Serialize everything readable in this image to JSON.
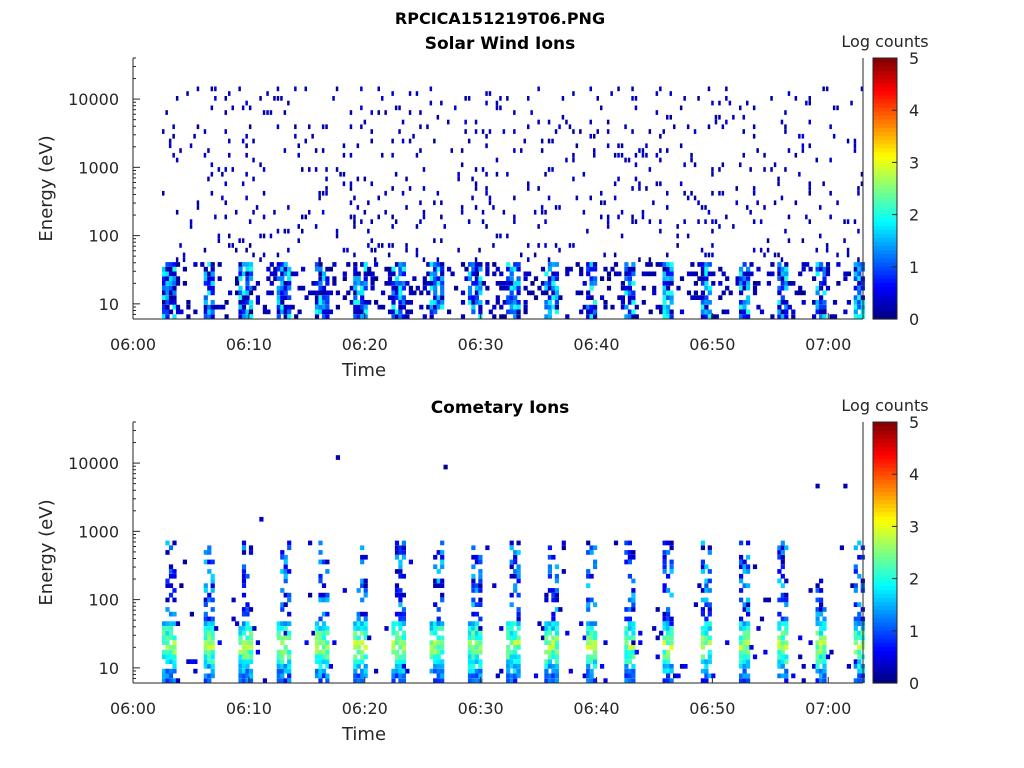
{
  "figure_title": "RPCICA151219T06.PNG",
  "chart_data": [
    {
      "type": "heatmap",
      "title": "Solar Wind Ions",
      "xlabel": "Time",
      "ylabel": "Energy (eV)",
      "x_range": [
        "06:00",
        "07:03"
      ],
      "x_ticks": [
        "06:00",
        "06:10",
        "06:20",
        "06:30",
        "06:40",
        "06:50",
        "07:00"
      ],
      "y_scale": "log",
      "y_range": [
        6,
        40000
      ],
      "y_ticks": [
        "10",
        "100",
        "1000",
        "10000"
      ],
      "colorbar_label": "Log counts",
      "colorbar_range": [
        0,
        5
      ],
      "colorbar_ticks": [
        "0",
        "1",
        "2",
        "3",
        "4",
        "5"
      ],
      "colormap": "jet",
      "start_minute": 2.5,
      "end_minute": 62.8,
      "sweep_period_min": 3.3,
      "band_energy_range_eV": [
        6,
        35
      ],
      "background_energy_range_eV": [
        35,
        14000
      ],
      "band_peak_log_counts": 1.9,
      "background_log_counts": 0.1
    },
    {
      "type": "heatmap",
      "title": "Cometary Ions",
      "xlabel": "Time",
      "ylabel": "Energy (eV)",
      "x_range": [
        "06:00",
        "07:03"
      ],
      "x_ticks": [
        "06:00",
        "06:10",
        "06:20",
        "06:30",
        "06:40",
        "06:50",
        "07:00"
      ],
      "y_scale": "log",
      "y_range": [
        6,
        40000
      ],
      "y_ticks": [
        "10",
        "100",
        "1000",
        "10000"
      ],
      "colorbar_label": "Log counts",
      "colorbar_range": [
        0,
        5
      ],
      "colorbar_ticks": [
        "0",
        "1",
        "2",
        "3",
        "4",
        "5"
      ],
      "colormap": "jet",
      "start_minute": 2.5,
      "end_minute": 62.8,
      "sweep_period_min": 3.3,
      "band_energy_range_eV": [
        6,
        45
      ],
      "band_peak_energy_eV": 20,
      "band_peak_log_counts": 3.1,
      "spike_max_energy_eV": 700,
      "scattered_max_energy_eV": 16000
    }
  ]
}
